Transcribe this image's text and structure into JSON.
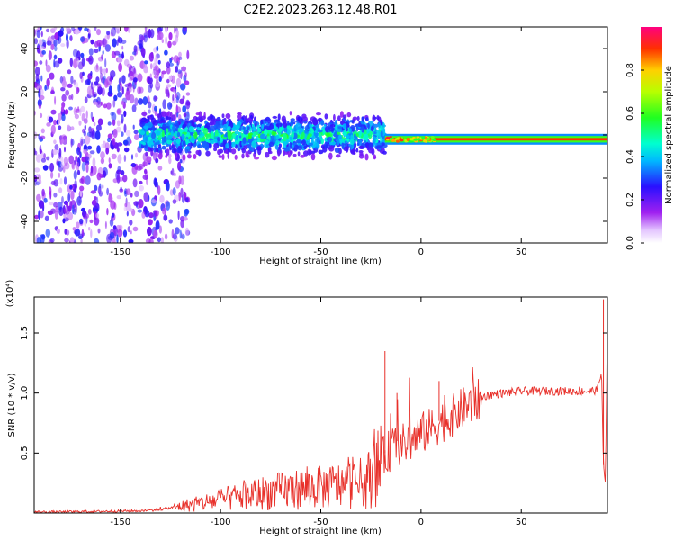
{
  "title": "C2E2.2023.263.12.48.R01",
  "chart_data": [
    {
      "type": "heatmap",
      "xlabel": "Height of straight line (km)",
      "ylabel": "Frequency (Hz)",
      "xlim": [
        -193,
        93
      ],
      "ylim": [
        -50,
        50
      ],
      "xticks": [
        -150,
        -100,
        -50,
        0,
        50
      ],
      "yticks": [
        -40,
        -20,
        0,
        20,
        40
      ],
      "colorbar": {
        "label": "Normalized spectral amplitude",
        "range": [
          0.0,
          1.0
        ],
        "ticks": [
          0.0,
          0.2,
          0.4,
          0.6,
          0.8
        ],
        "colormap": "rainbow"
      },
      "features": {
        "scatter_noise_region_km": [
          -193,
          -128
        ],
        "broadband_echo_region_km": [
          -140,
          -18
        ],
        "broadband_echo_halfwidth_hz": 8,
        "narrow_line_region_km": [
          -18,
          93
        ],
        "narrow_line_frequency_hz": -2
      }
    },
    {
      "type": "line",
      "xlabel": "Height of straight line (km)",
      "ylabel": "SNR (10 * v/v)",
      "y_multiplier": "(x10⁴)",
      "xlim": [
        -193,
        93
      ],
      "ylim": [
        0,
        1.8
      ],
      "xticks": [
        -150,
        -100,
        -50,
        0,
        50
      ],
      "yticks": [
        0.5,
        1.0,
        1.5
      ],
      "ytick_labels": [
        "0.5",
        "1.0",
        "1.5"
      ],
      "color": "#e8302a",
      "series": [
        {
          "x": [
            -193,
            -180,
            -160,
            -140,
            -130,
            -120,
            -110,
            -100,
            -90,
            -80,
            -70,
            -60,
            -50,
            -40,
            -30,
            -25,
            -20,
            -18,
            -15,
            -12,
            -10,
            -5,
            0,
            5,
            10,
            15,
            20,
            25,
            30,
            35,
            40,
            45,
            50,
            55,
            60,
            65,
            70,
            75,
            80,
            85,
            88,
            90,
            91,
            92,
            93
          ],
          "values": [
            0.01,
            0.01,
            0.015,
            0.02,
            0.03,
            0.06,
            0.09,
            0.12,
            0.15,
            0.18,
            0.2,
            0.22,
            0.23,
            0.25,
            0.27,
            0.32,
            0.45,
            0.5,
            0.55,
            0.6,
            0.58,
            0.62,
            0.68,
            0.72,
            0.78,
            0.82,
            0.88,
            0.93,
            0.97,
            0.99,
            1.0,
            1.01,
            1.02,
            1.02,
            1.02,
            1.02,
            1.02,
            1.02,
            1.02,
            1.02,
            1.03,
            1.2,
            0.4,
            0.25,
            1.6
          ]
        }
      ],
      "spikes": [
        {
          "x": -18,
          "y": 1.35
        },
        {
          "x": -12,
          "y": 1.0
        },
        {
          "x": 9,
          "y": 1.1
        },
        {
          "x": 91,
          "y": 1.78
        }
      ]
    }
  ]
}
